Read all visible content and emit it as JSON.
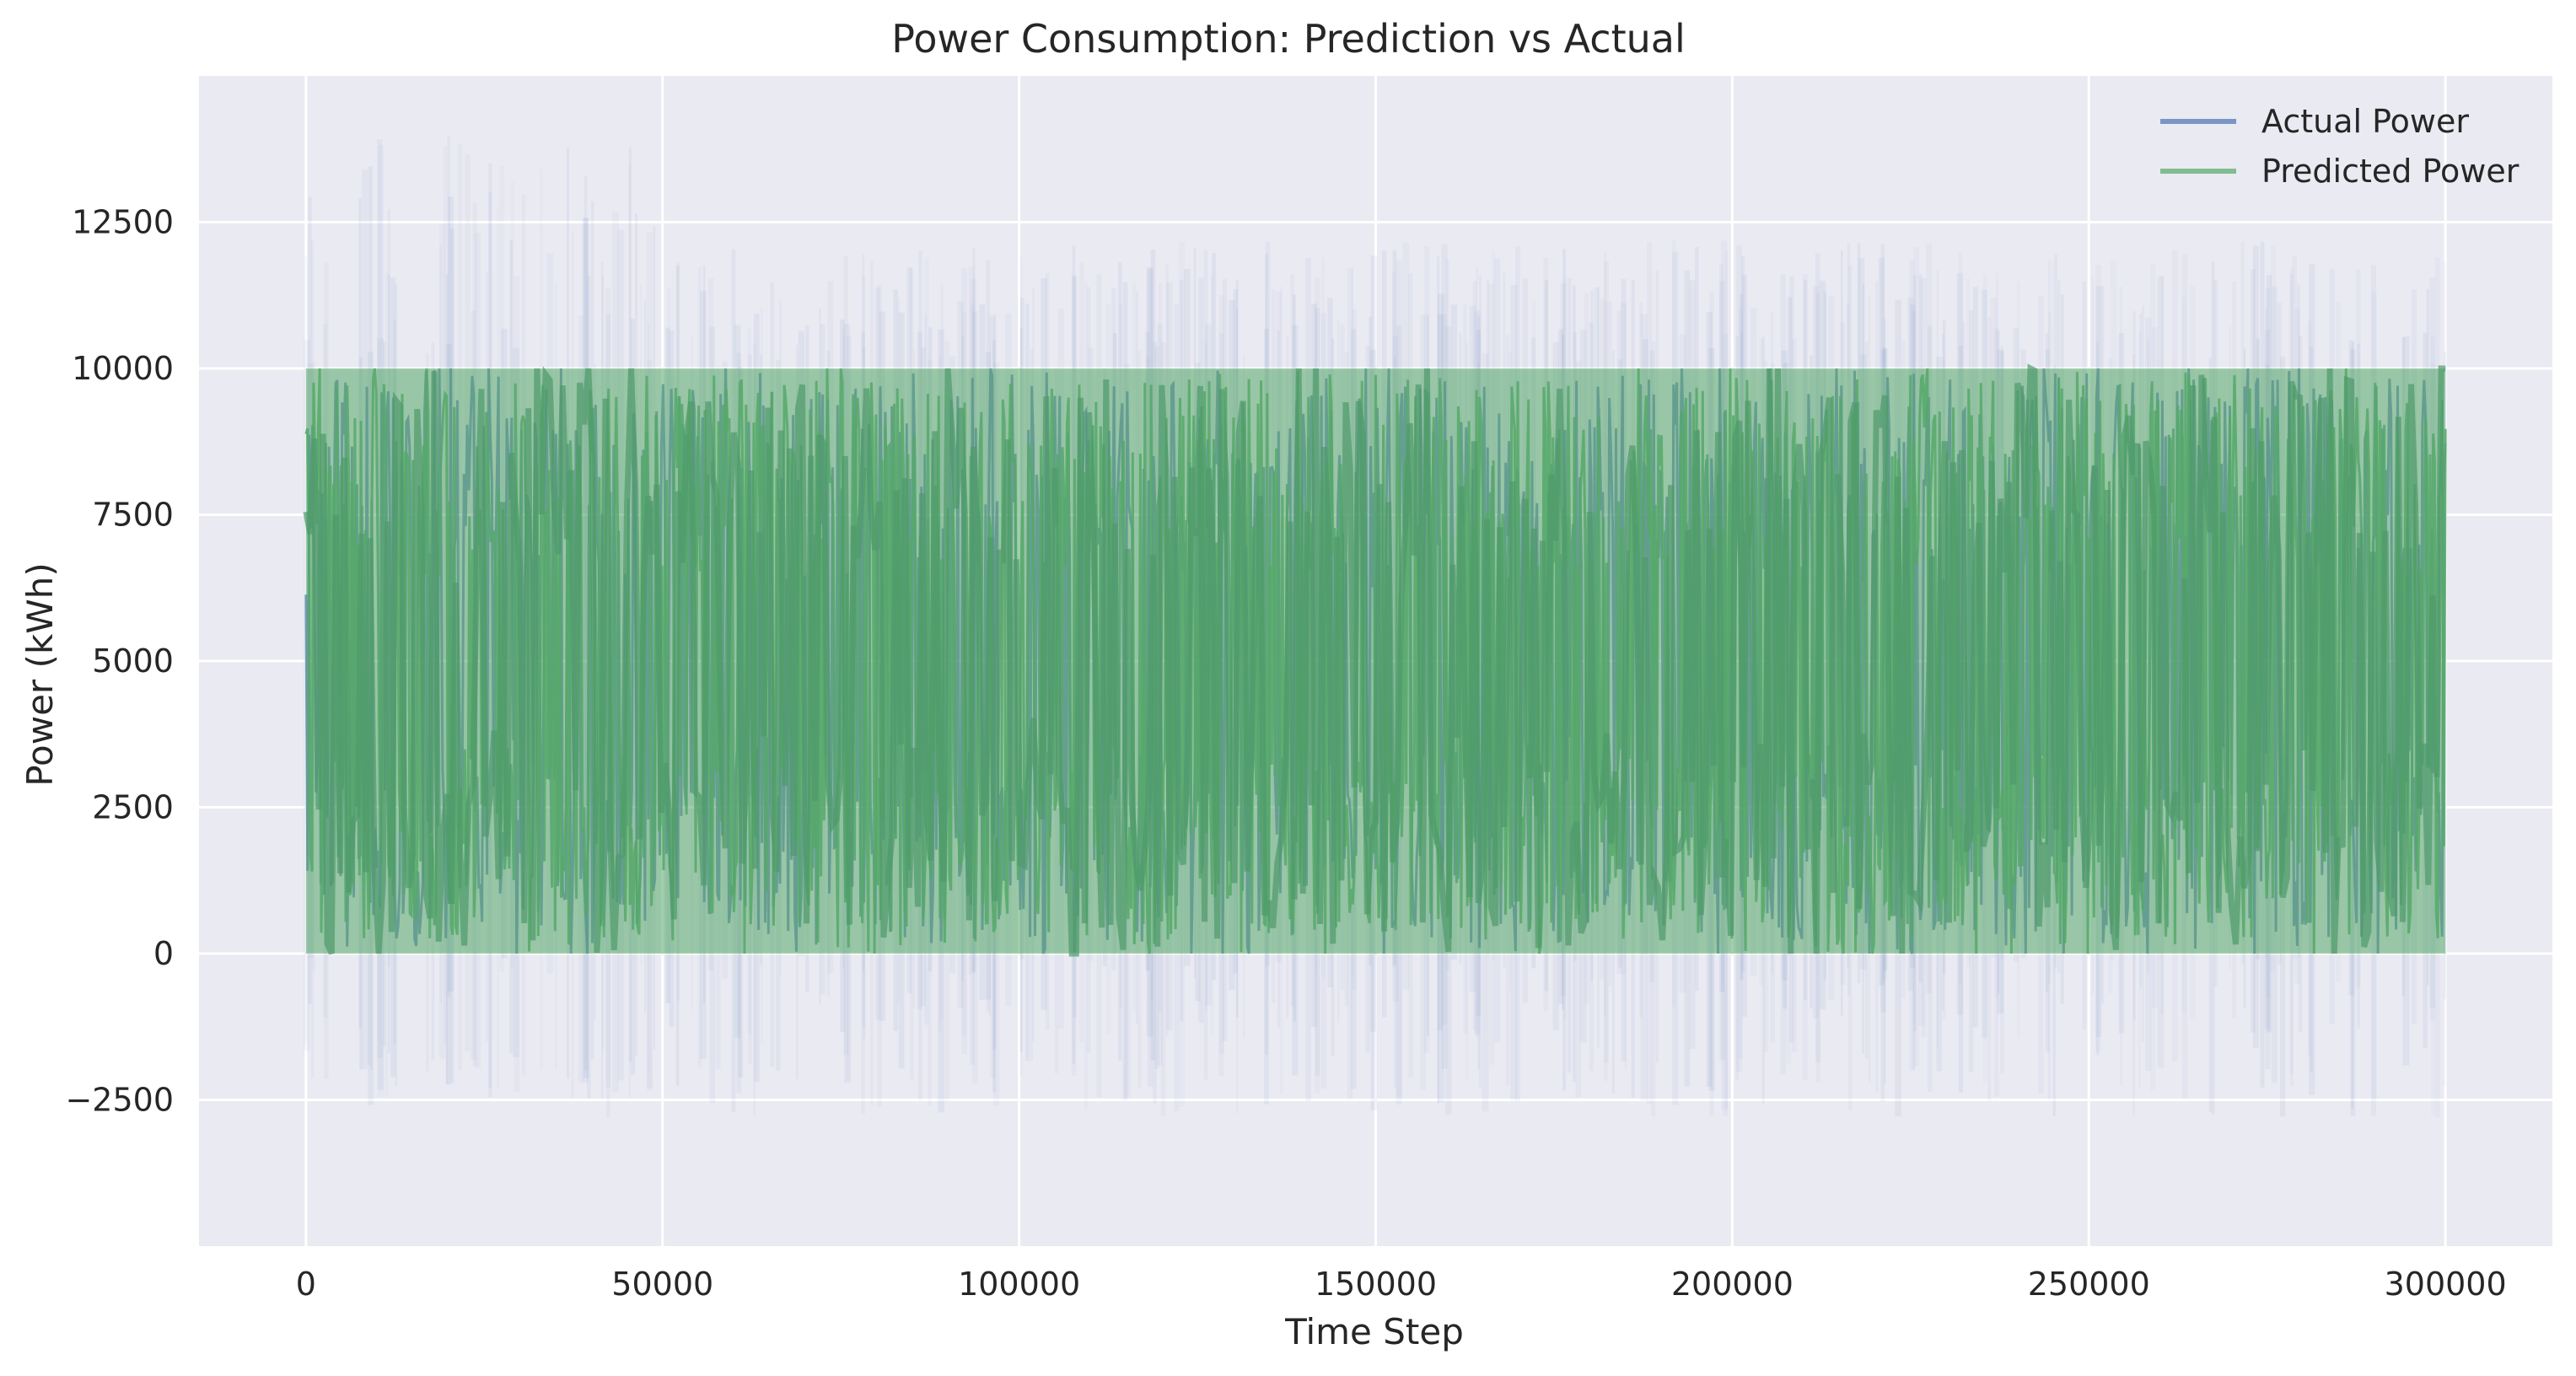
{
  "chart_data": {
    "type": "line",
    "title": "Power Consumption: Prediction vs Actual",
    "xlabel": "Time Step",
    "ylabel": "Power (kWh)",
    "xlim": [
      -15000,
      315000
    ],
    "ylim": [
      -5000,
      15000
    ],
    "xticks": [
      0,
      50000,
      100000,
      150000,
      200000,
      250000,
      300000
    ],
    "yticks": [
      -2500,
      0,
      2500,
      5000,
      7500,
      10000,
      12500
    ],
    "xtick_labels": [
      "0",
      "50000",
      "100000",
      "150000",
      "200000",
      "250000",
      "300000"
    ],
    "ytick_labels": [
      "−2500",
      "0",
      "2500",
      "5000",
      "7500",
      "10000",
      "12500"
    ],
    "grid": true,
    "legend_position": "top-right",
    "series": [
      {
        "name": "Actual Power",
        "color": "#4c72b0",
        "x_range": [
          0,
          300000
        ],
        "y_typical_range": [
          0,
          10000
        ],
        "y_observed_min": -2500,
        "y_observed_max": 13800
      },
      {
        "name": "Predicted Power",
        "color": "#55a868",
        "x_range": [
          0,
          300000
        ],
        "y_typical_range": [
          0,
          10000
        ]
      }
    ]
  }
}
